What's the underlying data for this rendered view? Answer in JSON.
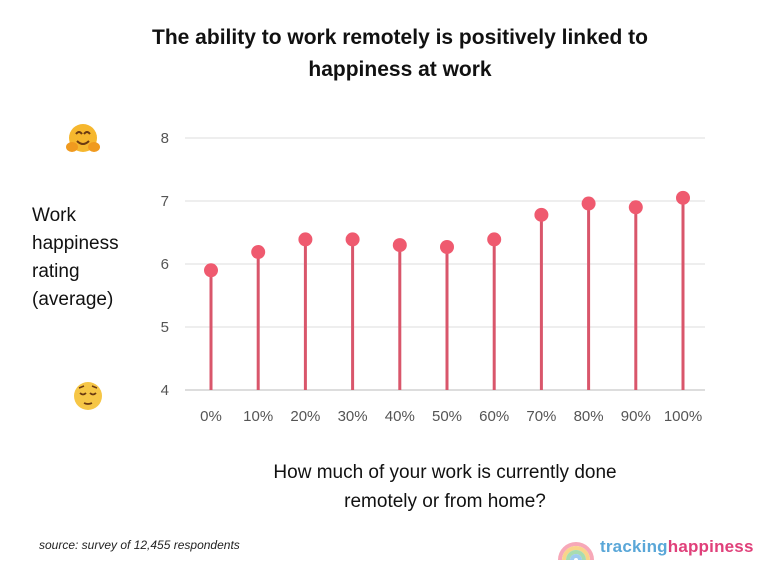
{
  "header": {
    "title_line1": "The ability to work remotely is positively linked to",
    "title_line2": "happiness at work"
  },
  "y_axis_label": [
    "Work",
    "happiness",
    "rating",
    "(average)"
  ],
  "x_axis_label": [
    "How much of your work is currently done",
    "remotely or from home?"
  ],
  "source": "source: survey of 12,455 respondents",
  "logo": {
    "part1": "tracking",
    "part2": "happiness"
  },
  "icons": {
    "top": "hugging-face-emoji",
    "bottom": "relieved-face-emoji"
  },
  "colors": {
    "stem": "#d9566b",
    "dot": "#ef5a6f",
    "grid": "#dddddd",
    "logo_blue": "#5aa7d8",
    "logo_pink": "#e0407a"
  },
  "chart_data": {
    "type": "lollipop",
    "categories": [
      "0%",
      "10%",
      "20%",
      "30%",
      "40%",
      "50%",
      "60%",
      "70%",
      "80%",
      "90%",
      "100%"
    ],
    "values": [
      5.9,
      6.19,
      6.39,
      6.39,
      6.3,
      6.27,
      6.39,
      6.78,
      6.96,
      6.9,
      7.05
    ],
    "title": "The ability to work remotely is positively linked to happiness at work",
    "xlabel": "How much of your work is currently done remotely or from home?",
    "ylabel": "Work happiness rating (average)",
    "ylim": [
      4,
      8
    ],
    "yticks": [
      4,
      5,
      6,
      7,
      8
    ],
    "grid": true,
    "legend": "none"
  }
}
